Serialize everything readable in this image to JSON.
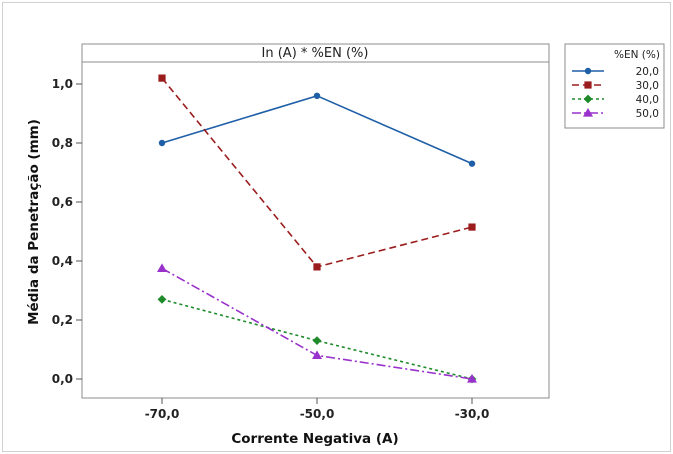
{
  "chart_data": {
    "type": "line",
    "panel_title": "In (A) * %EN (%)",
    "xlabel": "Corrente Negativa (A)",
    "ylabel": "Média da Penetração (mm)",
    "categories": [
      "-70,0",
      "-50,0",
      "-30,0"
    ],
    "y_ticks": [
      "0,0",
      "0,2",
      "0,4",
      "0,6",
      "0,8",
      "1,0"
    ],
    "ylim": [
      -0.07,
      1.09
    ],
    "legend_title": "%EN (%)",
    "legend_position": "top-right, outside plot",
    "grid": false,
    "series": [
      {
        "name": "20,0",
        "values": [
          0.8,
          0.96,
          0.73
        ],
        "color": "#1f5fa8",
        "marker": "circle",
        "dash": "solid"
      },
      {
        "name": "30,0",
        "values": [
          1.02,
          0.38,
          0.515
        ],
        "color": "#9b1c1c",
        "marker": "square",
        "dash": "dashed"
      },
      {
        "name": "40,0",
        "values": [
          0.27,
          0.13,
          0.0
        ],
        "color": "#1e8a2a",
        "marker": "diamond",
        "dash": "dotted"
      },
      {
        "name": "50,0",
        "values": [
          0.375,
          0.08,
          0.0
        ],
        "color": "#9932cc",
        "marker": "triangle",
        "dash": "dashdot"
      }
    ]
  }
}
